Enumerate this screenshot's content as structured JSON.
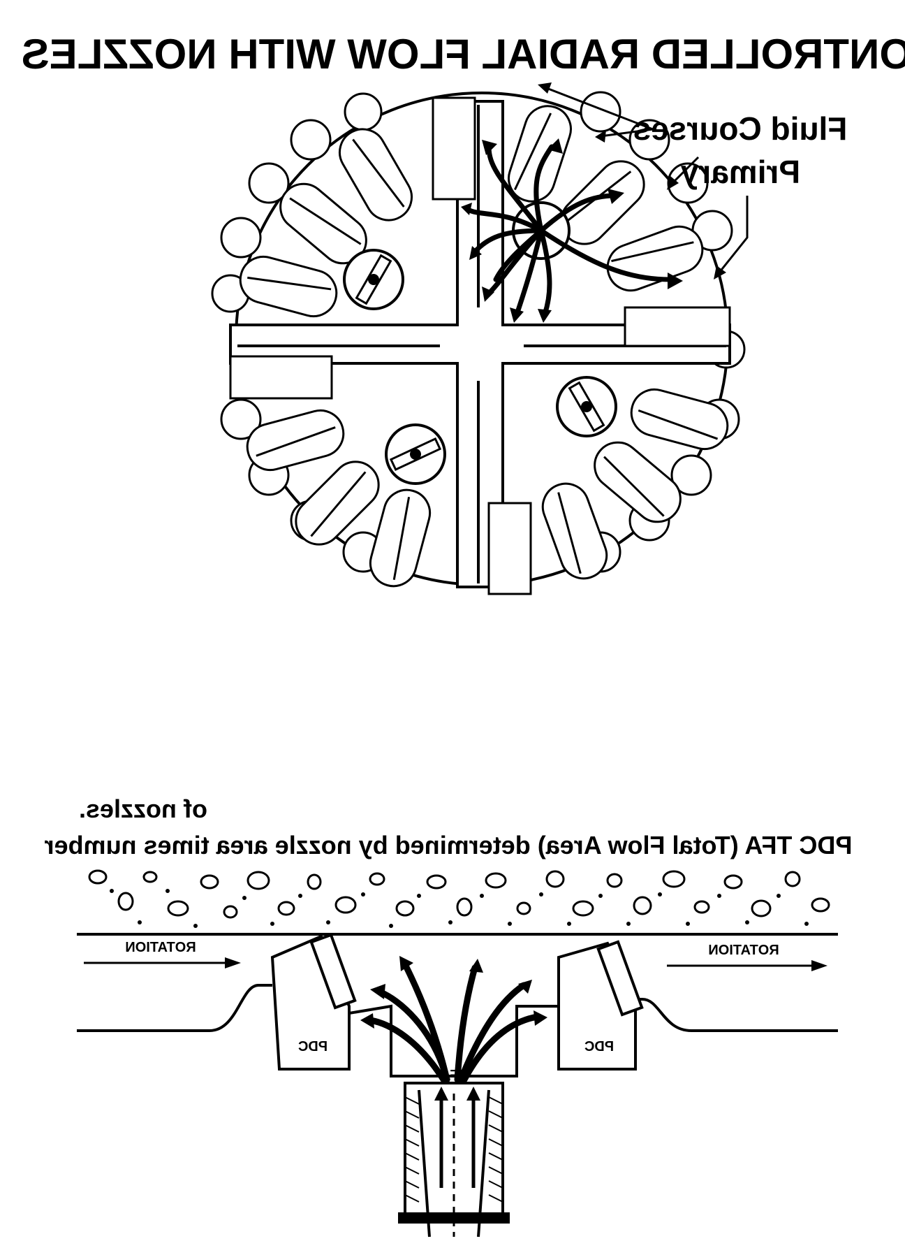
{
  "title": "CONTROLLED RADIAL FLOW WITH NOZZLES",
  "bit_face": {
    "label_fluid_courses": "Fluid Courses",
    "label_primary": "Primary"
  },
  "cross_section": {
    "caption_line1": "PDC TFA (Total Flow Area) determined by nozzle area times number",
    "caption_line2": "of nozzles.",
    "rotation_left": "ROTATION",
    "rotation_right": "ROTATION",
    "cutter_left": "PDC",
    "cutter_right": "PDC",
    "nozzle_label": "TFA"
  }
}
